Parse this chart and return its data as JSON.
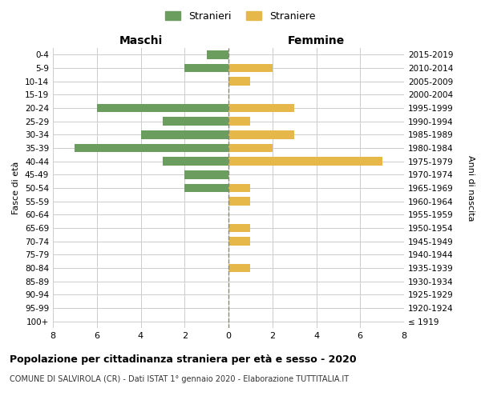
{
  "age_groups": [
    "100+",
    "95-99",
    "90-94",
    "85-89",
    "80-84",
    "75-79",
    "70-74",
    "65-69",
    "60-64",
    "55-59",
    "50-54",
    "45-49",
    "40-44",
    "35-39",
    "30-34",
    "25-29",
    "20-24",
    "15-19",
    "10-14",
    "5-9",
    "0-4"
  ],
  "birth_years": [
    "≤ 1919",
    "1920-1924",
    "1925-1929",
    "1930-1934",
    "1935-1939",
    "1940-1944",
    "1945-1949",
    "1950-1954",
    "1955-1959",
    "1960-1964",
    "1965-1969",
    "1970-1974",
    "1975-1979",
    "1980-1984",
    "1985-1989",
    "1990-1994",
    "1995-1999",
    "2000-2004",
    "2005-2009",
    "2010-2014",
    "2015-2019"
  ],
  "maschi": [
    0,
    0,
    0,
    0,
    0,
    0,
    0,
    0,
    0,
    0,
    2,
    2,
    3,
    7,
    4,
    3,
    6,
    0,
    0,
    2,
    1
  ],
  "femmine": [
    0,
    0,
    0,
    0,
    1,
    0,
    1,
    1,
    0,
    1,
    1,
    0,
    7,
    2,
    3,
    1,
    3,
    0,
    1,
    2,
    0
  ],
  "color_maschi": "#6b9e5e",
  "color_femmine": "#e6b84a",
  "title": "Popolazione per cittadinanza straniera per età e sesso - 2020",
  "subtitle": "COMUNE DI SALVIROLA (CR) - Dati ISTAT 1° gennaio 2020 - Elaborazione TUTTITALIA.IT",
  "ylabel_left": "Fasce di età",
  "ylabel_right": "Anni di nascita",
  "xlabel_maschi": "Maschi",
  "xlabel_femmine": "Femmine",
  "legend_stranieri": "Stranieri",
  "legend_straniere": "Straniere",
  "xlim": 8,
  "background_color": "#ffffff",
  "grid_color": "#cccccc"
}
